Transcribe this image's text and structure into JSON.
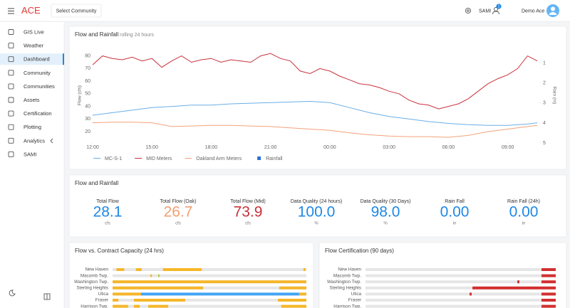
{
  "topbar": {
    "logo": "ACE",
    "community_button": "Select Community",
    "user_menu": "SAMI",
    "badge": "1",
    "user": "Demo Ace"
  },
  "sidebar": {
    "items": [
      "GIS Live",
      "Weather",
      "Dashboard",
      "Community",
      "Communities",
      "Assets",
      "Certification",
      "Plotting",
      "Analytics",
      "SAMI"
    ],
    "active": 2
  },
  "flow_chart": {
    "type": "line",
    "title": "Flow and Rainfall",
    "subtitle": "rolling 24 hours",
    "y_label": "Flow (cfs)",
    "y2_label": "Rain (in)",
    "xlim": [
      12,
      34.6
    ],
    "xticks": [
      {
        "value": 12,
        "label": "12:00"
      },
      {
        "value": 15,
        "label": "15:00"
      },
      {
        "value": 18,
        "label": "18:00"
      },
      {
        "value": 21,
        "label": "21:00"
      },
      {
        "value": 24,
        "label": "00:00"
      },
      {
        "value": 27,
        "label": "03:00"
      },
      {
        "value": 30,
        "label": "06:00"
      },
      {
        "value": 33,
        "label": "09:00"
      }
    ],
    "ylim": [
      11,
      86
    ],
    "yticks": [
      20,
      30,
      40,
      50,
      60,
      70,
      80
    ],
    "y2lim": [
      0.26,
      5
    ],
    "y2_inverted": true,
    "y2ticks": [
      1,
      2,
      3,
      4,
      5
    ],
    "grid": false,
    "series": [
      {
        "name": "MC-S-1",
        "color": "#6aaee8",
        "x": [
          12,
          13,
          14,
          15,
          16,
          17,
          18,
          19,
          20,
          21,
          22,
          23,
          24,
          25,
          26,
          27,
          28,
          29,
          30,
          31,
          32,
          33,
          34,
          34.5
        ],
        "values": [
          33,
          35,
          37,
          39,
          40,
          41,
          41,
          42,
          42.5,
          43,
          43.5,
          44,
          43,
          39,
          35,
          32,
          30,
          28,
          26.5,
          25.5,
          25,
          25,
          26,
          27
        ]
      },
      {
        "name": "MID Meters",
        "color": "#c8323a",
        "x": [
          12,
          12.5,
          13,
          13.5,
          14,
          14.5,
          15,
          15.5,
          16,
          16.5,
          17,
          17.5,
          18,
          18.5,
          19,
          19.5,
          20,
          20.5,
          21,
          21.5,
          22,
          22.5,
          23,
          23.5,
          24,
          24.5,
          25,
          25.5,
          26,
          26.5,
          27,
          27.5,
          28,
          28.5,
          29,
          29.5,
          30,
          30.5,
          31,
          31.5,
          32,
          32.5,
          33,
          33.5,
          34,
          34.5
        ],
        "values": [
          73,
          80,
          78,
          77,
          79,
          76,
          78,
          71,
          76,
          80,
          75,
          77,
          78,
          75,
          77,
          76,
          75,
          80,
          82,
          78,
          76,
          68,
          66,
          70,
          68,
          64,
          61,
          58,
          57,
          55,
          52,
          50,
          45,
          42,
          41,
          38,
          40,
          42,
          46,
          52,
          58,
          62,
          65,
          70,
          80,
          76
        ]
      },
      {
        "name": "Oakland Arm Meters",
        "color": "#f5a27a",
        "x": [
          12,
          13,
          14,
          15,
          16,
          17,
          18,
          19,
          20,
          21,
          22,
          23,
          24,
          25,
          26,
          27,
          28,
          29,
          30,
          31,
          32,
          33,
          34,
          34.5
        ],
        "values": [
          27,
          27.5,
          27.5,
          27,
          24,
          24.5,
          25,
          25,
          24.5,
          24,
          23,
          22,
          21,
          19,
          17.5,
          16.5,
          16,
          16,
          15.5,
          17,
          20,
          22,
          24,
          25
        ]
      },
      {
        "name": "Rainfall",
        "color": "#2f6fd6",
        "axis": "y2",
        "marker": "square"
      }
    ]
  },
  "stats": {
    "title": "Flow and Rainfall",
    "items": [
      {
        "label": "Total Flow",
        "value": "28.1",
        "unit": "cfs",
        "color": "#1e88e5"
      },
      {
        "label": "Total Flow (Oak)",
        "value": "26.7",
        "unit": "cfs",
        "color": "#f2a072"
      },
      {
        "label": "Total Flow (Mid)",
        "value": "73.9",
        "unit": "cfs",
        "color": "#c8323a"
      },
      {
        "label": "Data Quality (24 hours)",
        "value": "100.0",
        "unit": "%",
        "color": "#1e88e5"
      },
      {
        "label": "Data Quality (30 Days)",
        "value": "98.0",
        "unit": "%",
        "color": "#1e88e5"
      },
      {
        "label": "Rain Fall",
        "value": "0.00",
        "unit": "in",
        "color": "#1e88e5"
      },
      {
        "label": "Rain Fall (24h)",
        "value": "0.00",
        "unit": "in",
        "color": "#1e88e5"
      }
    ]
  },
  "capacity": {
    "title": "Flow vs. Contract Capacity (24 hrs)",
    "rows": [
      {
        "name": "New Haven",
        "segments": [
          {
            "start": 2,
            "end": 6,
            "color": "#f5b728"
          },
          {
            "start": 12,
            "end": 15,
            "color": "#f5b728"
          },
          {
            "start": 26,
            "end": 46,
            "color": "#f5b728"
          },
          {
            "start": 98.5,
            "end": 99.6,
            "color": "#f5b728"
          }
        ]
      },
      {
        "name": "Macomb Twp.",
        "segments": [
          {
            "start": 19.5,
            "end": 20.3,
            "color": "#f5b728"
          },
          {
            "start": 23.5,
            "end": 24.2,
            "color": "#b5c93a"
          }
        ]
      },
      {
        "name": "Washington Twp.",
        "segments": [
          {
            "start": 0,
            "end": 100,
            "color": "#f5b728"
          }
        ]
      },
      {
        "name": "Sterling Heights",
        "segments": [
          {
            "start": 0,
            "end": 46.7,
            "color": "#f5b728"
          },
          {
            "start": 86,
            "end": 100,
            "color": "#f5b728"
          }
        ]
      },
      {
        "name": "Utica",
        "segments": [
          {
            "start": 0,
            "end": 14.7,
            "color": "#f5b728"
          },
          {
            "start": 14.7,
            "end": 96.3,
            "color": "#42a5f5"
          },
          {
            "start": 96.3,
            "end": 100,
            "color": "#f5b728"
          }
        ]
      },
      {
        "name": "Fraser",
        "segments": [
          {
            "start": 0,
            "end": 3,
            "color": "#f5b728"
          },
          {
            "start": 11,
            "end": 37.5,
            "color": "#f5b728"
          },
          {
            "start": 85.3,
            "end": 100,
            "color": "#f5b728"
          }
        ]
      },
      {
        "name": "Harrison Twp.",
        "segments": [
          {
            "start": 0,
            "end": 8,
            "color": "#f5b728"
          },
          {
            "start": 11,
            "end": 14,
            "color": "#f5b728"
          },
          {
            "start": 18.4,
            "end": 28.7,
            "color": "#f5b728"
          },
          {
            "start": 87,
            "end": 100,
            "color": "#f5b728"
          }
        ]
      }
    ]
  },
  "certification": {
    "title": "Flow Certification (90 days)",
    "rows": [
      {
        "name": "New Haven",
        "segments": [
          {
            "start": 92.5,
            "end": 100,
            "color": "#d32f2f"
          }
        ]
      },
      {
        "name": "Macomb Twp.",
        "segments": [
          {
            "start": 92.5,
            "end": 100,
            "color": "#d32f2f"
          }
        ]
      },
      {
        "name": "Washington Twp.",
        "segments": [
          {
            "start": 79.8,
            "end": 80.9,
            "color": "#d32f2f"
          },
          {
            "start": 92.5,
            "end": 100,
            "color": "#d32f2f"
          }
        ]
      },
      {
        "name": "Sterling Heights",
        "segments": [
          {
            "start": 56.2,
            "end": 100,
            "color": "#d32f2f"
          }
        ]
      },
      {
        "name": "Utica",
        "segments": [
          {
            "start": 54.7,
            "end": 55.8,
            "color": "#d32f2f"
          },
          {
            "start": 92.5,
            "end": 100,
            "color": "#d32f2f"
          }
        ]
      },
      {
        "name": "Fraser",
        "segments": [
          {
            "start": 92.5,
            "end": 100,
            "color": "#d32f2f"
          }
        ]
      },
      {
        "name": "Harrison Twp.",
        "segments": [
          {
            "start": 92.5,
            "end": 100,
            "color": "#d32f2f"
          }
        ]
      }
    ]
  }
}
